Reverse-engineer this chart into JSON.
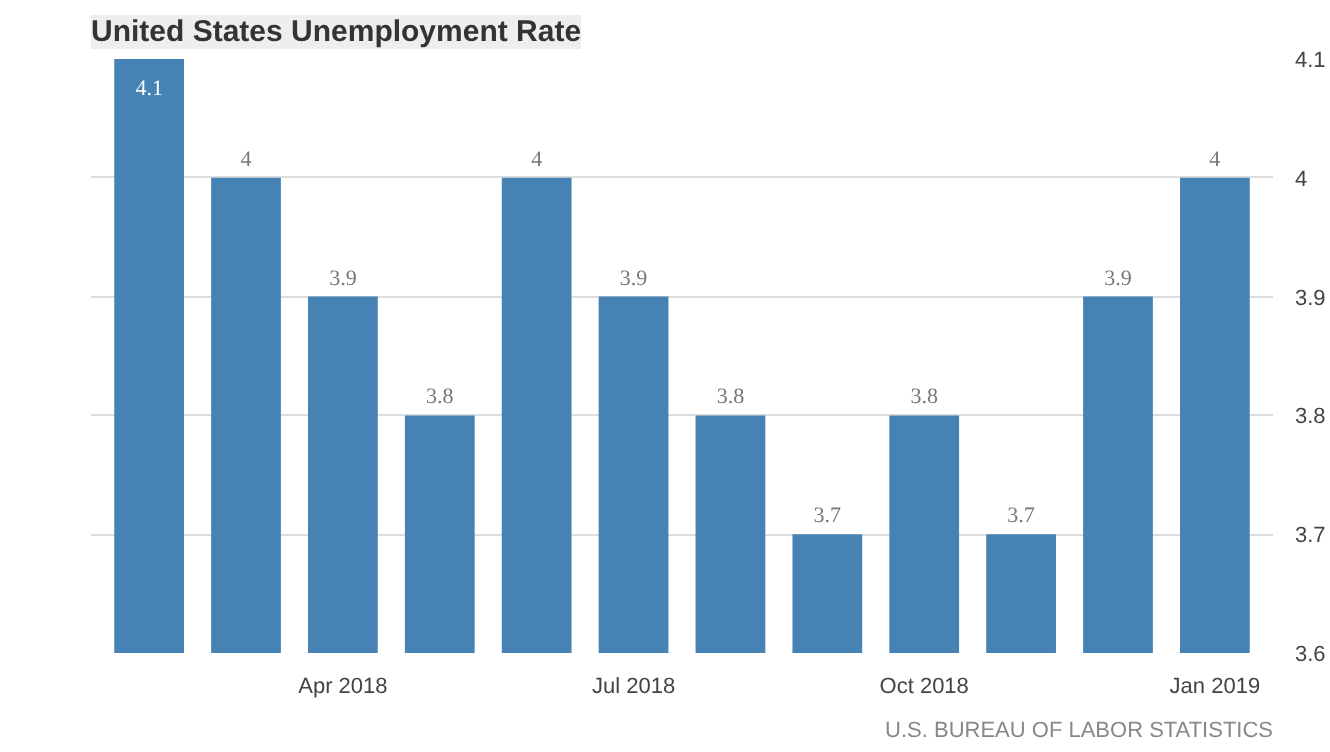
{
  "chart_data": {
    "type": "bar",
    "title": "United States Unemployment Rate",
    "categories": [
      null,
      null,
      "Apr 2018",
      null,
      null,
      "Jul 2018",
      null,
      null,
      "Oct 2018",
      null,
      null,
      "Jan 2019"
    ],
    "values": [
      4.1,
      4,
      3.9,
      3.8,
      4,
      3.9,
      3.8,
      3.7,
      3.8,
      3.7,
      3.9,
      4
    ],
    "color": "#4682b4",
    "ylim": [
      3.6,
      4.1
    ],
    "yticks": [
      3.6,
      3.7,
      3.8,
      3.9,
      4,
      4.1
    ],
    "grid": "y",
    "data_labels": true,
    "annotations": [
      "U.S. BUREAU OF LABOR STATISTICS"
    ]
  }
}
